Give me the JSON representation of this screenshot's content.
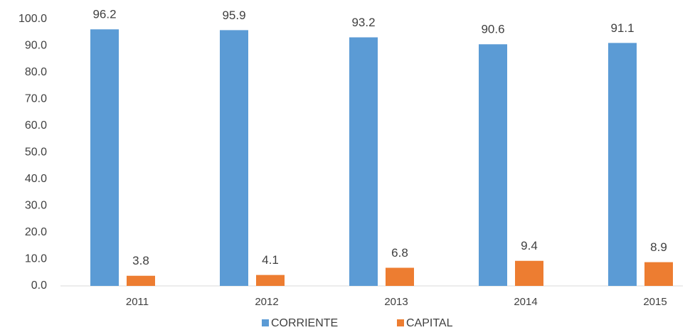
{
  "chart_data": {
    "type": "bar",
    "categories": [
      "2011",
      "2012",
      "2013",
      "2014",
      "2015"
    ],
    "series": [
      {
        "name": "CORRIENTE",
        "color": "#5b9bd5",
        "values": [
          96.2,
          95.9,
          93.2,
          90.6,
          91.1
        ]
      },
      {
        "name": "CAPITAL",
        "color": "#ed7d31",
        "values": [
          3.8,
          4.1,
          6.8,
          9.4,
          8.9
        ]
      }
    ],
    "ylim": [
      0,
      100
    ],
    "yticks": [
      {
        "value": 0,
        "label": "0.0"
      },
      {
        "value": 10,
        "label": "10.0"
      },
      {
        "value": 20,
        "label": "20.0"
      },
      {
        "value": 30,
        "label": "30.0"
      },
      {
        "value": 40,
        "label": "40.0"
      },
      {
        "value": 50,
        "label": "50.0"
      },
      {
        "value": 60,
        "label": "60.0"
      },
      {
        "value": 70,
        "label": "70.0"
      },
      {
        "value": 80,
        "label": "80.0"
      },
      {
        "value": 90,
        "label": "90.0"
      },
      {
        "value": 100,
        "label": "100.0"
      }
    ],
    "grid": false,
    "legend": "bottom"
  }
}
